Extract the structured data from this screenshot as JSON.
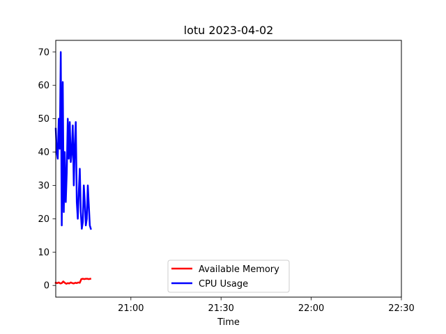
{
  "chart_data": {
    "type": "line",
    "title": "lotu 2023-04-02",
    "xlabel": "Time",
    "ylabel": "",
    "x_unit": "time of day (HH:MM)",
    "xlim": [
      "20:35",
      "22:30"
    ],
    "ylim": [
      -3.5,
      73.5
    ],
    "x_ticks": [
      "21:00",
      "21:30",
      "22:00",
      "22:30"
    ],
    "y_ticks": [
      0,
      10,
      20,
      30,
      40,
      50,
      60,
      70
    ],
    "grid": false,
    "legend_position": "lower center",
    "series": [
      {
        "name": "Available Memory",
        "color": "#ff0000",
        "x": [
          "20:35:00",
          "20:35:30",
          "20:36:00",
          "20:36:30",
          "20:37:00",
          "20:37:30",
          "20:38:00",
          "20:38:30",
          "20:39:00",
          "20:39:30",
          "20:40:00",
          "20:40:30",
          "20:41:00",
          "20:41:30",
          "20:42:00",
          "20:42:30",
          "20:43:00",
          "20:43:30",
          "20:44:00",
          "20:44:30",
          "20:45:00",
          "20:45:30",
          "20:46:00",
          "20:46:30"
        ],
        "values": [
          0.8,
          0.7,
          0.9,
          0.6,
          0.7,
          1.2,
          0.8,
          0.5,
          0.7,
          0.6,
          0.9,
          0.7,
          0.6,
          0.8,
          0.7,
          0.9,
          0.8,
          1.9,
          2.0,
          1.9,
          2.0,
          2.0,
          1.9,
          2.0
        ]
      },
      {
        "name": "CPU Usage",
        "color": "#0000ff",
        "x": [
          "20:35:00",
          "20:35:20",
          "20:35:40",
          "20:36:00",
          "20:36:20",
          "20:36:40",
          "20:37:00",
          "20:37:20",
          "20:37:40",
          "20:38:00",
          "20:38:20",
          "20:38:40",
          "20:39:00",
          "20:39:20",
          "20:39:40",
          "20:40:00",
          "20:40:20",
          "20:40:40",
          "20:41:00",
          "20:41:20",
          "20:41:40",
          "20:42:00",
          "20:42:20",
          "20:42:40",
          "20:43:00",
          "20:43:20",
          "20:43:40",
          "20:44:00",
          "20:44:20",
          "20:44:40",
          "20:45:00",
          "20:45:20",
          "20:45:40",
          "20:46:00",
          "20:46:20",
          "20:46:40"
        ],
        "values": [
          47,
          40,
          38,
          50,
          41,
          70,
          18,
          61,
          22,
          40,
          25,
          34,
          50,
          38,
          49,
          37,
          40,
          48,
          30,
          42,
          49,
          25,
          20,
          28,
          35,
          22,
          17,
          19,
          30,
          25,
          18,
          20,
          30,
          24,
          18,
          17
        ]
      }
    ]
  }
}
